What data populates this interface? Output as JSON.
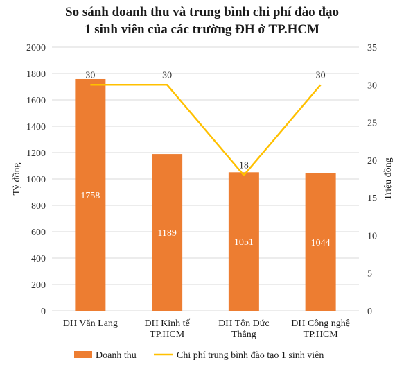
{
  "chart_data": {
    "type": "bar",
    "title_lines": [
      "So sánh doanh thu và trung bình chi phí đào đạo",
      "1 sinh viên của các trường ĐH ở TP.HCM"
    ],
    "categories": [
      [
        "ĐH Văn Lang"
      ],
      [
        "ĐH Kinh tế",
        "TP.HCM"
      ],
      [
        "ĐH Tôn Đức",
        "Thắng"
      ],
      [
        "ĐH Công nghệ",
        "TP.HCM"
      ]
    ],
    "series": [
      {
        "name": "Doanh thu",
        "type": "bar",
        "axis": "left",
        "color": "#ed7d31",
        "values": [
          1758,
          1189,
          1051,
          1044
        ],
        "labels": [
          "1758",
          "1189",
          "1051",
          "1044"
        ]
      },
      {
        "name": "Chi phí trung bình đào tạo 1 sinh viên",
        "type": "line",
        "axis": "right",
        "color": "#ffc000",
        "values": [
          30,
          30,
          18,
          30
        ],
        "labels": [
          "30",
          "30",
          "18",
          "30"
        ]
      }
    ],
    "ylabel": "Tỷ đồng",
    "y2label": "Triệu đồng",
    "ylim": [
      0,
      2000
    ],
    "y_ticks": [
      "0",
      "200",
      "400",
      "600",
      "800",
      "1000",
      "1200",
      "1400",
      "1600",
      "1800",
      "2000"
    ],
    "y2lim": [
      0,
      35
    ],
    "y2_ticks": [
      "0",
      "5",
      "10",
      "15",
      "20",
      "25",
      "30",
      "35"
    ],
    "grid": true,
    "legend_position": "bottom"
  }
}
